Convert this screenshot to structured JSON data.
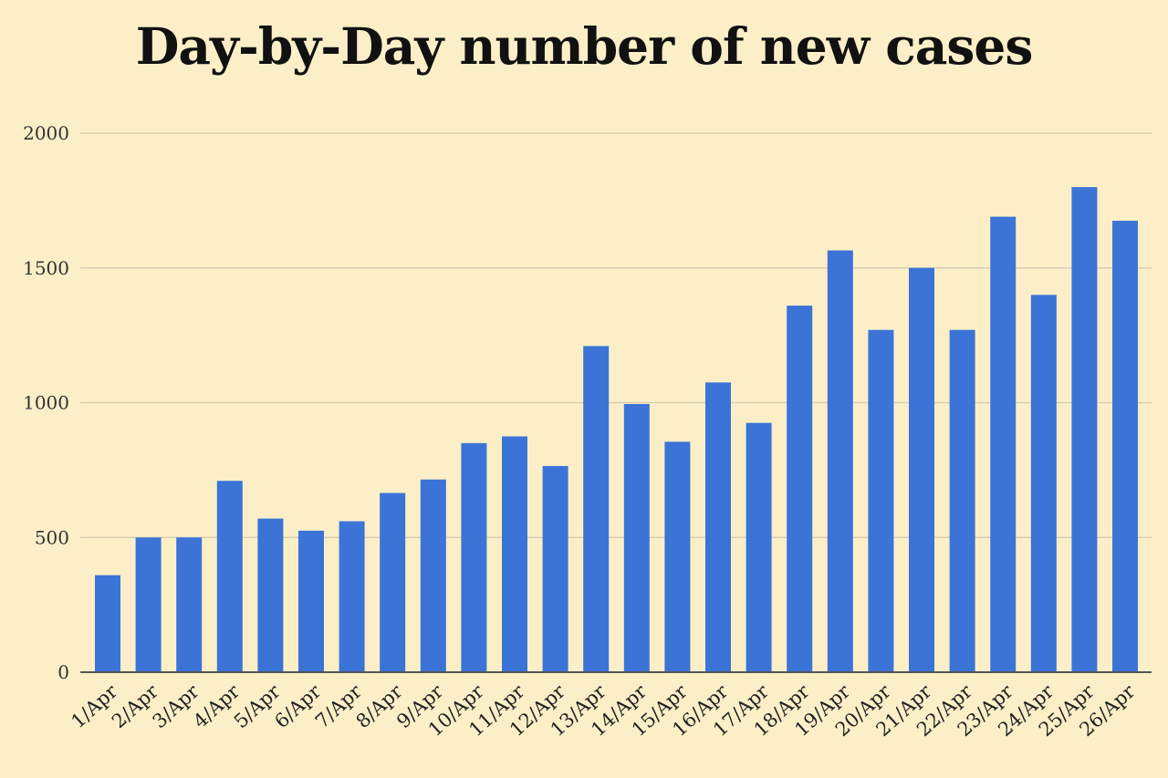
{
  "chart_data": {
    "type": "bar",
    "title": "Day-by-Day number of new cases",
    "xlabel": "",
    "ylabel": "",
    "ylim": [
      0,
      2000
    ],
    "yticks": [
      "0",
      "500",
      "1000",
      "1500",
      "2000"
    ],
    "grid": true,
    "categories": [
      "1/Apr",
      "2/Apr",
      "3/Apr",
      "4/Apr",
      "5/Apr",
      "6/Apr",
      "7/Apr",
      "8/Apr",
      "9/Apr",
      "10/Apr",
      "11/Apr",
      "12/Apr",
      "13/Apr",
      "14/Apr",
      "15/Apr",
      "16/Apr",
      "17/Apr",
      "18/Apr",
      "19/Apr",
      "20/Apr",
      "21/Apr",
      "22/Apr",
      "23/Apr",
      "24/Apr",
      "25/Apr",
      "26/Apr"
    ],
    "values": [
      360,
      500,
      500,
      710,
      570,
      525,
      560,
      665,
      715,
      850,
      875,
      765,
      1210,
      995,
      855,
      1075,
      925,
      1360,
      1565,
      1270,
      1500,
      1270,
      1690,
      1400,
      1800,
      1675
    ],
    "colors": {
      "bar": "#3b74d6",
      "grid": "#d8cfb2",
      "axis": "#555555",
      "background": "#fcefc8"
    }
  }
}
